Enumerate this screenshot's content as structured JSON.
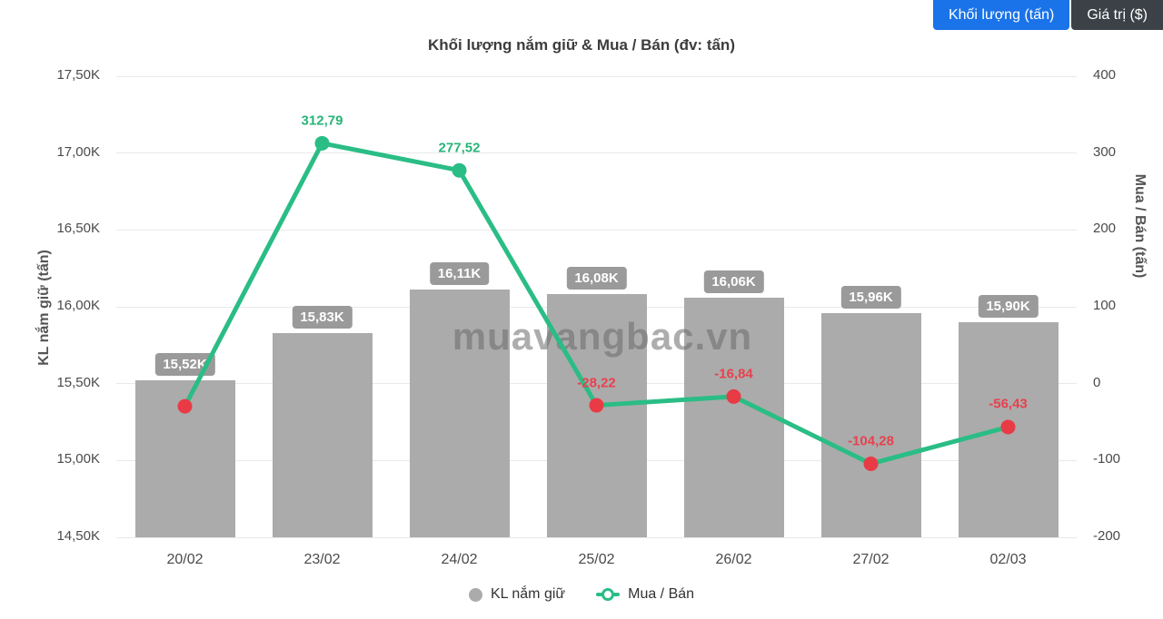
{
  "header": {
    "buttons": [
      {
        "label": "Khối lượng (tấn)",
        "active": true
      },
      {
        "label": "Giá trị ($)",
        "active": false
      }
    ],
    "active_color": "#1a73e8",
    "inactive_color": "#3c4147"
  },
  "chart": {
    "title": "Khối lượng nắm giữ & Mua / Bán (đv: tấn)",
    "watermark": "muavangbac.vn"
  },
  "chart_data": {
    "type": "bar+line",
    "categories": [
      "20/02",
      "23/02",
      "24/02",
      "25/02",
      "26/02",
      "27/02",
      "02/03"
    ],
    "series": [
      {
        "name": "KL nắm giữ",
        "type": "bar",
        "axis": "left",
        "color": "#ababab",
        "values": [
          15520,
          15830,
          16110,
          16080,
          16060,
          15960,
          15900
        ],
        "labels": [
          "15,52K",
          "15,83K",
          "16,11K",
          "16,08K",
          "16,06K",
          "15,96K",
          "15,90K"
        ]
      },
      {
        "name": "Mua / Bán",
        "type": "line",
        "axis": "right",
        "color": "#2abd85",
        "negative_point_color": "#e83b46",
        "positive_label_color": "#27b478",
        "negative_label_color": "#e8414d",
        "values": [
          -29.5,
          312.79,
          277.52,
          -28.22,
          -16.84,
          -104.28,
          -56.43
        ],
        "labels": [
          "",
          "312,79",
          "277,52",
          "-28,22",
          "-16,84",
          "-104,28",
          "-56,43"
        ]
      }
    ],
    "left_axis": {
      "label": "KL nắm giữ (tấn)",
      "min": 14500,
      "max": 17500,
      "ticks": [
        {
          "label": "17,50K",
          "value": 17500
        },
        {
          "label": "17,00K",
          "value": 17000
        },
        {
          "label": "16,50K",
          "value": 16500
        },
        {
          "label": "16,00K",
          "value": 16000
        },
        {
          "label": "15,50K",
          "value": 15500
        },
        {
          "label": "15,00K",
          "value": 15000
        },
        {
          "label": "14,50K",
          "value": 14500
        }
      ]
    },
    "right_axis": {
      "label": "Mua / Bán (tấn)",
      "min": -200,
      "max": 400,
      "ticks": [
        {
          "label": "400",
          "value": 400
        },
        {
          "label": "300",
          "value": 300
        },
        {
          "label": "200",
          "value": 200
        },
        {
          "label": "100",
          "value": 100
        },
        {
          "label": "0",
          "value": 0
        },
        {
          "label": "-100",
          "value": -100
        },
        {
          "label": "-200",
          "value": -200
        }
      ]
    },
    "grid": true,
    "legend_position": "bottom"
  },
  "legend": {
    "items": [
      {
        "label": "KL nắm giữ",
        "marker": "gray-dot"
      },
      {
        "label": "Mua / Bán",
        "marker": "green-line-ring"
      }
    ]
  }
}
